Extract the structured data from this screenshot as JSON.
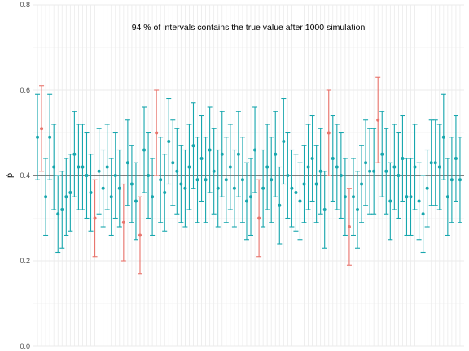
{
  "chart_data": {
    "type": "errorbar",
    "title": "94 % of intervals contains the true value after 1000 simulation",
    "xlabel": "",
    "ylabel": "p̂",
    "ylim": [
      0,
      0.8
    ],
    "yticks": [
      0.0,
      0.2,
      0.4,
      0.6,
      0.8
    ],
    "ytick_labels": [
      "0.0",
      "0.2",
      "0.4",
      "0.6",
      "0.8"
    ],
    "true_value": 0.4,
    "grid": true,
    "legend": "none",
    "colors": {
      "covers": "#17a6ad",
      "misses": "#e8736b",
      "reference_line": "#000000",
      "grid": "#ebebeb"
    },
    "intervals": [
      {
        "x": 1,
        "estimate": 0.49,
        "lower": 0.39,
        "upper": 0.59,
        "covers": true
      },
      {
        "x": 2,
        "estimate": 0.51,
        "lower": 0.41,
        "upper": 0.61,
        "covers": false
      },
      {
        "x": 3,
        "estimate": 0.35,
        "lower": 0.26,
        "upper": 0.44,
        "covers": true
      },
      {
        "x": 4,
        "estimate": 0.49,
        "lower": 0.39,
        "upper": 0.59,
        "covers": true
      },
      {
        "x": 5,
        "estimate": 0.42,
        "lower": 0.32,
        "upper": 0.52,
        "covers": true
      },
      {
        "x": 6,
        "estimate": 0.31,
        "lower": 0.22,
        "upper": 0.4,
        "covers": true
      },
      {
        "x": 7,
        "estimate": 0.32,
        "lower": 0.23,
        "upper": 0.41,
        "covers": true
      },
      {
        "x": 8,
        "estimate": 0.35,
        "lower": 0.26,
        "upper": 0.44,
        "covers": true
      },
      {
        "x": 9,
        "estimate": 0.36,
        "lower": 0.27,
        "upper": 0.45,
        "covers": true
      },
      {
        "x": 10,
        "estimate": 0.45,
        "lower": 0.35,
        "upper": 0.55,
        "covers": true
      },
      {
        "x": 11,
        "estimate": 0.42,
        "lower": 0.32,
        "upper": 0.52,
        "covers": true
      },
      {
        "x": 12,
        "estimate": 0.42,
        "lower": 0.32,
        "upper": 0.52,
        "covers": true
      },
      {
        "x": 13,
        "estimate": 0.4,
        "lower": 0.3,
        "upper": 0.5,
        "covers": true
      },
      {
        "x": 14,
        "estimate": 0.36,
        "lower": 0.27,
        "upper": 0.45,
        "covers": true
      },
      {
        "x": 15,
        "estimate": 0.3,
        "lower": 0.21,
        "upper": 0.39,
        "covers": false
      },
      {
        "x": 16,
        "estimate": 0.41,
        "lower": 0.31,
        "upper": 0.51,
        "covers": true
      },
      {
        "x": 17,
        "estimate": 0.37,
        "lower": 0.28,
        "upper": 0.46,
        "covers": true
      },
      {
        "x": 18,
        "estimate": 0.42,
        "lower": 0.32,
        "upper": 0.52,
        "covers": true
      },
      {
        "x": 19,
        "estimate": 0.35,
        "lower": 0.26,
        "upper": 0.44,
        "covers": true
      },
      {
        "x": 20,
        "estimate": 0.4,
        "lower": 0.3,
        "upper": 0.5,
        "covers": true
      },
      {
        "x": 21,
        "estimate": 0.37,
        "lower": 0.28,
        "upper": 0.46,
        "covers": true
      },
      {
        "x": 22,
        "estimate": 0.29,
        "lower": 0.2,
        "upper": 0.38,
        "covers": false
      },
      {
        "x": 23,
        "estimate": 0.43,
        "lower": 0.33,
        "upper": 0.53,
        "covers": true
      },
      {
        "x": 24,
        "estimate": 0.38,
        "lower": 0.29,
        "upper": 0.47,
        "covers": true
      },
      {
        "x": 25,
        "estimate": 0.34,
        "lower": 0.25,
        "upper": 0.43,
        "covers": true
      },
      {
        "x": 26,
        "estimate": 0.26,
        "lower": 0.17,
        "upper": 0.35,
        "covers": false
      },
      {
        "x": 27,
        "estimate": 0.46,
        "lower": 0.36,
        "upper": 0.56,
        "covers": true
      },
      {
        "x": 28,
        "estimate": 0.4,
        "lower": 0.3,
        "upper": 0.5,
        "covers": true
      },
      {
        "x": 29,
        "estimate": 0.35,
        "lower": 0.26,
        "upper": 0.44,
        "covers": true
      },
      {
        "x": 30,
        "estimate": 0.5,
        "lower": 0.4,
        "upper": 0.6,
        "covers": false
      },
      {
        "x": 31,
        "estimate": 0.39,
        "lower": 0.29,
        "upper": 0.49,
        "covers": true
      },
      {
        "x": 32,
        "estimate": 0.36,
        "lower": 0.27,
        "upper": 0.45,
        "covers": true
      },
      {
        "x": 33,
        "estimate": 0.48,
        "lower": 0.38,
        "upper": 0.58,
        "covers": true
      },
      {
        "x": 34,
        "estimate": 0.43,
        "lower": 0.33,
        "upper": 0.53,
        "covers": true
      },
      {
        "x": 35,
        "estimate": 0.41,
        "lower": 0.31,
        "upper": 0.51,
        "covers": true
      },
      {
        "x": 36,
        "estimate": 0.38,
        "lower": 0.29,
        "upper": 0.47,
        "covers": true
      },
      {
        "x": 37,
        "estimate": 0.37,
        "lower": 0.28,
        "upper": 0.46,
        "covers": true
      },
      {
        "x": 38,
        "estimate": 0.42,
        "lower": 0.32,
        "upper": 0.52,
        "covers": true
      },
      {
        "x": 39,
        "estimate": 0.47,
        "lower": 0.37,
        "upper": 0.57,
        "covers": true
      },
      {
        "x": 40,
        "estimate": 0.39,
        "lower": 0.29,
        "upper": 0.49,
        "covers": true
      },
      {
        "x": 41,
        "estimate": 0.44,
        "lower": 0.34,
        "upper": 0.54,
        "covers": true
      },
      {
        "x": 42,
        "estimate": 0.39,
        "lower": 0.29,
        "upper": 0.49,
        "covers": true
      },
      {
        "x": 43,
        "estimate": 0.46,
        "lower": 0.36,
        "upper": 0.56,
        "covers": true
      },
      {
        "x": 44,
        "estimate": 0.41,
        "lower": 0.31,
        "upper": 0.51,
        "covers": true
      },
      {
        "x": 45,
        "estimate": 0.37,
        "lower": 0.28,
        "upper": 0.46,
        "covers": true
      },
      {
        "x": 46,
        "estimate": 0.45,
        "lower": 0.35,
        "upper": 0.55,
        "covers": true
      },
      {
        "x": 47,
        "estimate": 0.39,
        "lower": 0.29,
        "upper": 0.49,
        "covers": true
      },
      {
        "x": 48,
        "estimate": 0.42,
        "lower": 0.32,
        "upper": 0.52,
        "covers": true
      },
      {
        "x": 49,
        "estimate": 0.37,
        "lower": 0.28,
        "upper": 0.46,
        "covers": true
      },
      {
        "x": 50,
        "estimate": 0.45,
        "lower": 0.35,
        "upper": 0.55,
        "covers": true
      },
      {
        "x": 51,
        "estimate": 0.39,
        "lower": 0.29,
        "upper": 0.49,
        "covers": true
      },
      {
        "x": 52,
        "estimate": 0.34,
        "lower": 0.25,
        "upper": 0.43,
        "covers": true
      },
      {
        "x": 53,
        "estimate": 0.35,
        "lower": 0.26,
        "upper": 0.44,
        "covers": true
      },
      {
        "x": 54,
        "estimate": 0.46,
        "lower": 0.36,
        "upper": 0.56,
        "covers": true
      },
      {
        "x": 55,
        "estimate": 0.3,
        "lower": 0.21,
        "upper": 0.39,
        "covers": false
      },
      {
        "x": 56,
        "estimate": 0.37,
        "lower": 0.28,
        "upper": 0.46,
        "covers": true
      },
      {
        "x": 57,
        "estimate": 0.42,
        "lower": 0.32,
        "upper": 0.52,
        "covers": true
      },
      {
        "x": 58,
        "estimate": 0.39,
        "lower": 0.29,
        "upper": 0.49,
        "covers": true
      },
      {
        "x": 59,
        "estimate": 0.45,
        "lower": 0.35,
        "upper": 0.55,
        "covers": true
      },
      {
        "x": 60,
        "estimate": 0.33,
        "lower": 0.24,
        "upper": 0.42,
        "covers": true
      },
      {
        "x": 61,
        "estimate": 0.48,
        "lower": 0.38,
        "upper": 0.58,
        "covers": true
      },
      {
        "x": 62,
        "estimate": 0.4,
        "lower": 0.3,
        "upper": 0.5,
        "covers": true
      },
      {
        "x": 63,
        "estimate": 0.37,
        "lower": 0.28,
        "upper": 0.46,
        "covers": true
      },
      {
        "x": 64,
        "estimate": 0.36,
        "lower": 0.27,
        "upper": 0.45,
        "covers": true
      },
      {
        "x": 65,
        "estimate": 0.34,
        "lower": 0.25,
        "upper": 0.43,
        "covers": true
      },
      {
        "x": 66,
        "estimate": 0.38,
        "lower": 0.29,
        "upper": 0.47,
        "covers": true
      },
      {
        "x": 67,
        "estimate": 0.42,
        "lower": 0.32,
        "upper": 0.52,
        "covers": true
      },
      {
        "x": 68,
        "estimate": 0.44,
        "lower": 0.34,
        "upper": 0.54,
        "covers": true
      },
      {
        "x": 69,
        "estimate": 0.38,
        "lower": 0.29,
        "upper": 0.47,
        "covers": true
      },
      {
        "x": 70,
        "estimate": 0.41,
        "lower": 0.31,
        "upper": 0.51,
        "covers": true
      },
      {
        "x": 71,
        "estimate": 0.32,
        "lower": 0.23,
        "upper": 0.41,
        "covers": true
      },
      {
        "x": 72,
        "estimate": 0.5,
        "lower": 0.4,
        "upper": 0.6,
        "covers": false
      },
      {
        "x": 73,
        "estimate": 0.44,
        "lower": 0.34,
        "upper": 0.54,
        "covers": true
      },
      {
        "x": 74,
        "estimate": 0.42,
        "lower": 0.32,
        "upper": 0.52,
        "covers": true
      },
      {
        "x": 75,
        "estimate": 0.4,
        "lower": 0.3,
        "upper": 0.5,
        "covers": true
      },
      {
        "x": 76,
        "estimate": 0.35,
        "lower": 0.26,
        "upper": 0.44,
        "covers": true
      },
      {
        "x": 77,
        "estimate": 0.28,
        "lower": 0.19,
        "upper": 0.37,
        "covers": false
      },
      {
        "x": 78,
        "estimate": 0.35,
        "lower": 0.26,
        "upper": 0.44,
        "covers": true
      },
      {
        "x": 79,
        "estimate": 0.32,
        "lower": 0.23,
        "upper": 0.41,
        "covers": true
      },
      {
        "x": 80,
        "estimate": 0.38,
        "lower": 0.29,
        "upper": 0.47,
        "covers": true
      },
      {
        "x": 81,
        "estimate": 0.43,
        "lower": 0.33,
        "upper": 0.53,
        "covers": true
      },
      {
        "x": 82,
        "estimate": 0.41,
        "lower": 0.31,
        "upper": 0.51,
        "covers": true
      },
      {
        "x": 83,
        "estimate": 0.41,
        "lower": 0.31,
        "upper": 0.51,
        "covers": true
      },
      {
        "x": 84,
        "estimate": 0.53,
        "lower": 0.43,
        "upper": 0.63,
        "covers": false
      },
      {
        "x": 85,
        "estimate": 0.45,
        "lower": 0.35,
        "upper": 0.55,
        "covers": true
      },
      {
        "x": 86,
        "estimate": 0.41,
        "lower": 0.31,
        "upper": 0.51,
        "covers": true
      },
      {
        "x": 87,
        "estimate": 0.34,
        "lower": 0.25,
        "upper": 0.43,
        "covers": true
      },
      {
        "x": 88,
        "estimate": 0.42,
        "lower": 0.32,
        "upper": 0.52,
        "covers": true
      },
      {
        "x": 89,
        "estimate": 0.4,
        "lower": 0.3,
        "upper": 0.5,
        "covers": true
      },
      {
        "x": 90,
        "estimate": 0.44,
        "lower": 0.34,
        "upper": 0.54,
        "covers": true
      },
      {
        "x": 91,
        "estimate": 0.35,
        "lower": 0.26,
        "upper": 0.44,
        "covers": true
      },
      {
        "x": 92,
        "estimate": 0.35,
        "lower": 0.26,
        "upper": 0.44,
        "covers": true
      },
      {
        "x": 93,
        "estimate": 0.42,
        "lower": 0.32,
        "upper": 0.52,
        "covers": true
      },
      {
        "x": 94,
        "estimate": 0.34,
        "lower": 0.25,
        "upper": 0.43,
        "covers": true
      },
      {
        "x": 95,
        "estimate": 0.31,
        "lower": 0.22,
        "upper": 0.4,
        "covers": true
      },
      {
        "x": 96,
        "estimate": 0.37,
        "lower": 0.28,
        "upper": 0.46,
        "covers": true
      },
      {
        "x": 97,
        "estimate": 0.43,
        "lower": 0.33,
        "upper": 0.53,
        "covers": true
      },
      {
        "x": 98,
        "estimate": 0.43,
        "lower": 0.33,
        "upper": 0.53,
        "covers": true
      },
      {
        "x": 99,
        "estimate": 0.42,
        "lower": 0.32,
        "upper": 0.52,
        "covers": true
      },
      {
        "x": 100,
        "estimate": 0.49,
        "lower": 0.39,
        "upper": 0.59,
        "covers": true
      },
      {
        "x": 101,
        "estimate": 0.35,
        "lower": 0.26,
        "upper": 0.44,
        "covers": true
      },
      {
        "x": 102,
        "estimate": 0.39,
        "lower": 0.29,
        "upper": 0.49,
        "covers": true
      },
      {
        "x": 103,
        "estimate": 0.44,
        "lower": 0.34,
        "upper": 0.54,
        "covers": true
      },
      {
        "x": 104,
        "estimate": 0.39,
        "lower": 0.29,
        "upper": 0.49,
        "covers": true
      }
    ]
  }
}
